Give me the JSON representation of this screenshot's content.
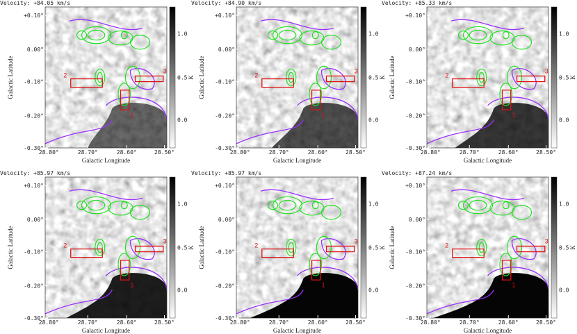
{
  "panels": [
    {
      "title": "Velocity: +84.05 km/s"
    },
    {
      "title": "Velocity: +84.90 km/s"
    },
    {
      "title": "Velocity: +85.33 km/s"
    },
    {
      "title": "Velocity: +85.97 km/s"
    },
    {
      "title": "Velocity: +85.97 km/s"
    },
    {
      "title": "Velocity: +87.24 km/s"
    }
  ],
  "axes": {
    "xlabel": "Galactic Longitude",
    "ylabel": "Galactic Latitude",
    "xticks": [
      "28.80°",
      "28.70°",
      "28.60°",
      "28.50°"
    ],
    "yticks": [
      "+0.10°",
      "0.00°",
      "-0.10°",
      "-0.20°",
      "-0.30°"
    ],
    "colorbar_label": "K",
    "colorbar_ticks": [
      "1.0",
      "0.5",
      "0.0"
    ]
  },
  "regions": [
    "1",
    "2",
    "3"
  ]
}
